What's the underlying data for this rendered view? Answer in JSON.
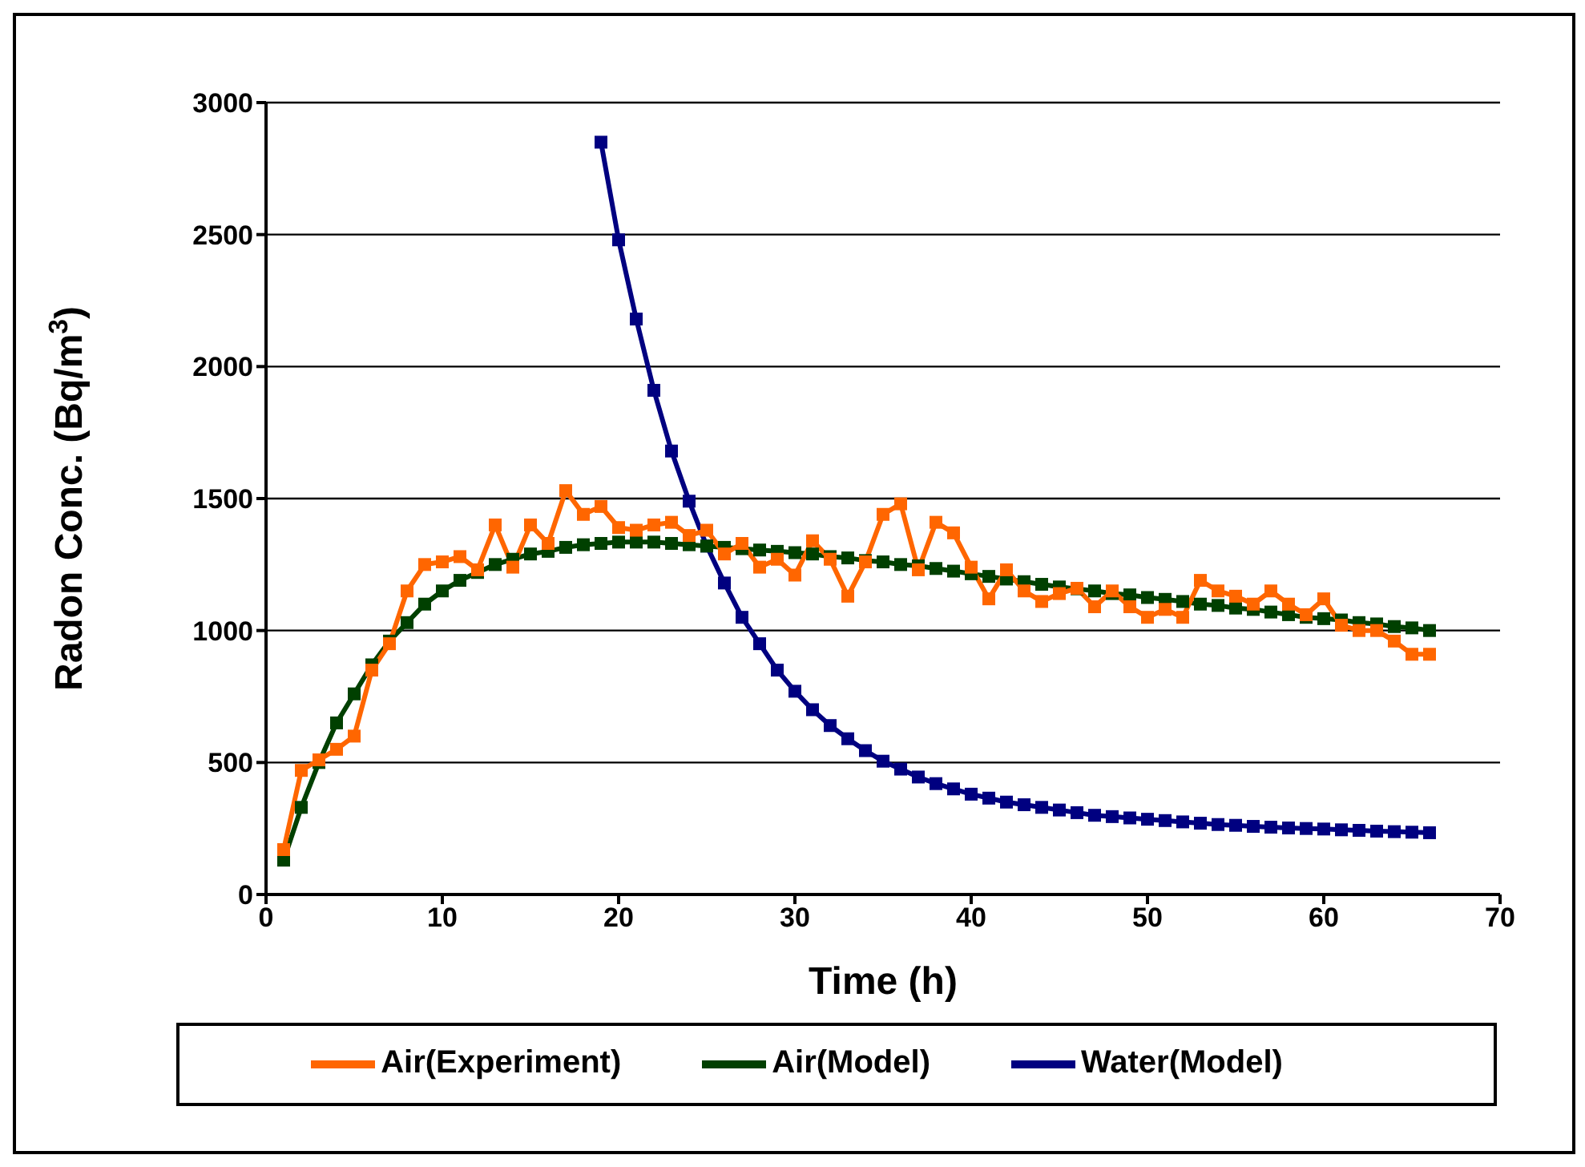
{
  "chart_data": {
    "type": "line",
    "xlabel": "Time (h)",
    "ylabel": "Radon Conc. (Bq/m$^{3}$)",
    "xlim": [
      0,
      70
    ],
    "xticks": [
      0,
      10,
      20,
      30,
      40,
      50,
      60,
      70
    ],
    "ylim": [
      0,
      3000
    ],
    "yticks": [
      0,
      500,
      1000,
      1500,
      2000,
      2500,
      3000
    ],
    "grid": "y",
    "legend": "bottom",
    "marker": "square",
    "line_style": "solid",
    "series": [
      {
        "name": "Water(Model)",
        "color": "#000080",
        "x": [
          19,
          20,
          21,
          22,
          23,
          24,
          25,
          26,
          27,
          28,
          29,
          30,
          31,
          32,
          33,
          34,
          35,
          36,
          37,
          38,
          39,
          40,
          41,
          42,
          43,
          44,
          45,
          46,
          47,
          48,
          49,
          50,
          51,
          52,
          53,
          54,
          55,
          56,
          57,
          58,
          59,
          60,
          61,
          62,
          63,
          64,
          65,
          66
        ],
        "values": [
          2850,
          2480,
          2180,
          1910,
          1680,
          1490,
          1320,
          1180,
          1050,
          950,
          850,
          770,
          700,
          640,
          590,
          545,
          505,
          475,
          445,
          420,
          400,
          380,
          365,
          350,
          340,
          330,
          320,
          310,
          300,
          295,
          290,
          285,
          280,
          275,
          270,
          265,
          262,
          258,
          255,
          252,
          250,
          248,
          245,
          243,
          240,
          238,
          236,
          234
        ]
      },
      {
        "name": "Air(Model)",
        "color": "#004000",
        "x": [
          1,
          2,
          3,
          4,
          5,
          6,
          7,
          8,
          9,
          10,
          11,
          12,
          13,
          14,
          15,
          16,
          17,
          18,
          19,
          20,
          21,
          22,
          23,
          24,
          25,
          26,
          27,
          28,
          29,
          30,
          31,
          32,
          33,
          34,
          35,
          36,
          37,
          38,
          39,
          40,
          41,
          42,
          43,
          44,
          45,
          46,
          47,
          48,
          49,
          50,
          51,
          52,
          53,
          54,
          55,
          56,
          57,
          58,
          59,
          60,
          61,
          62,
          63,
          64,
          65,
          66
        ],
        "values": [
          130,
          330,
          500,
          650,
          760,
          870,
          960,
          1030,
          1100,
          1150,
          1190,
          1220,
          1250,
          1270,
          1290,
          1300,
          1315,
          1325,
          1330,
          1335,
          1335,
          1335,
          1330,
          1325,
          1320,
          1315,
          1310,
          1305,
          1300,
          1295,
          1290,
          1280,
          1275,
          1265,
          1260,
          1250,
          1245,
          1235,
          1225,
          1215,
          1205,
          1195,
          1185,
          1175,
          1165,
          1158,
          1150,
          1140,
          1135,
          1125,
          1118,
          1110,
          1100,
          1095,
          1085,
          1080,
          1070,
          1060,
          1050,
          1045,
          1040,
          1030,
          1025,
          1015,
          1010,
          1000
        ]
      },
      {
        "name": "Air(Experiment)",
        "color": "#ff6600",
        "x": [
          1,
          2,
          3,
          4,
          5,
          6,
          7,
          8,
          9,
          10,
          11,
          12,
          13,
          14,
          15,
          16,
          17,
          18,
          19,
          20,
          21,
          22,
          23,
          24,
          25,
          26,
          27,
          28,
          29,
          30,
          31,
          32,
          33,
          34,
          35,
          36,
          37,
          38,
          39,
          40,
          41,
          42,
          43,
          44,
          45,
          46,
          47,
          48,
          49,
          50,
          51,
          52,
          53,
          54,
          55,
          56,
          57,
          58,
          59,
          60,
          61,
          62,
          63,
          64,
          65,
          66
        ],
        "values": [
          170,
          470,
          510,
          550,
          600,
          850,
          950,
          1150,
          1250,
          1260,
          1280,
          1230,
          1400,
          1240,
          1400,
          1330,
          1530,
          1440,
          1470,
          1390,
          1380,
          1400,
          1410,
          1360,
          1380,
          1290,
          1330,
          1240,
          1270,
          1210,
          1340,
          1270,
          1130,
          1260,
          1440,
          1480,
          1230,
          1410,
          1370,
          1240,
          1120,
          1230,
          1150,
          1110,
          1140,
          1160,
          1090,
          1150,
          1090,
          1050,
          1080,
          1050,
          1190,
          1150,
          1130,
          1100,
          1150,
          1100,
          1060,
          1120,
          1020,
          1000,
          1000,
          960,
          910,
          910
        ]
      }
    ]
  }
}
